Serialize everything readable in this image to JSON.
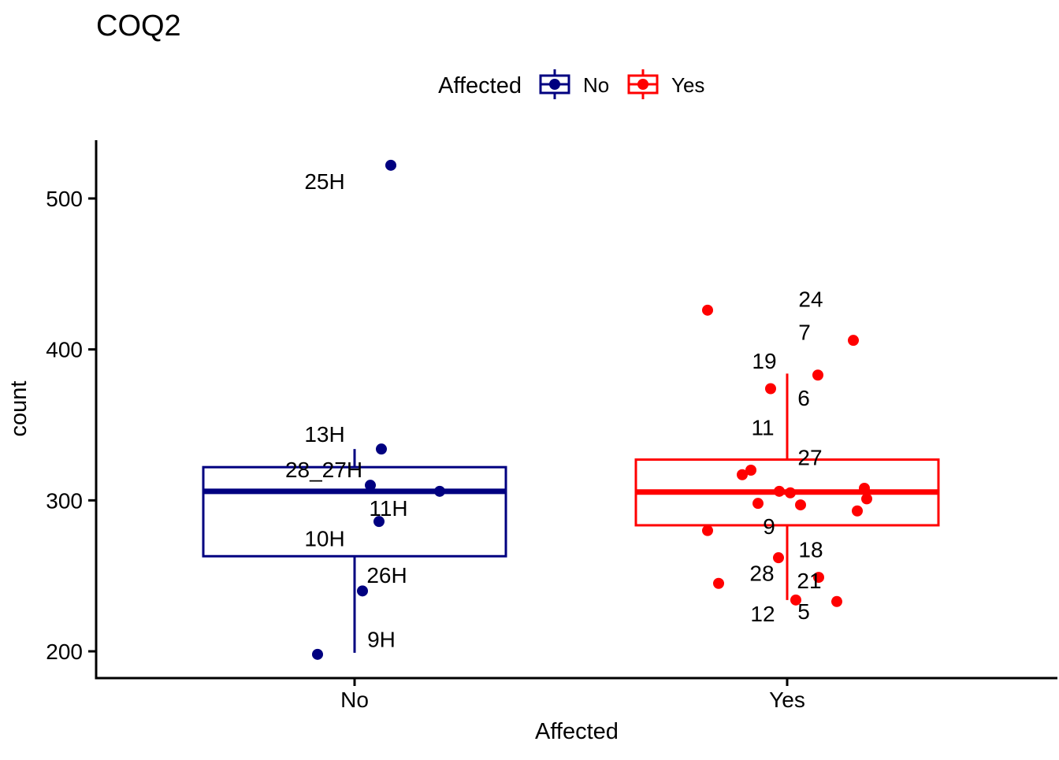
{
  "title": "COQ2",
  "legend": {
    "title": "Affected",
    "items": [
      {
        "label": "No",
        "color": "#000080"
      },
      {
        "label": "Yes",
        "color": "#FF0000"
      }
    ]
  },
  "colors": {
    "axis": "#000000",
    "text": "#000000",
    "background": "#ffffff"
  },
  "chart_data": {
    "type": "boxplot",
    "title": "COQ2",
    "xlabel": "Affected",
    "ylabel": "count",
    "x_categories": [
      "No",
      "Yes"
    ],
    "y_ticks": [
      200,
      300,
      400,
      500
    ],
    "ylim": [
      182,
      539
    ],
    "grid": false,
    "legend_position": "top",
    "groups": [
      {
        "name": "No",
        "color": "#000080",
        "box_stats": {
          "whisker_low": 199,
          "q1": 263,
          "median": 306,
          "q3": 322,
          "whisker_high": 334
        },
        "points": [
          {
            "value": 522,
            "dx": 46
          },
          {
            "value": 334,
            "dx": 34
          },
          {
            "value": 310,
            "dx": 20
          },
          {
            "value": 306,
            "dx": 108
          },
          {
            "value": 286,
            "dx": 31
          },
          {
            "value": 240,
            "dx": 10
          },
          {
            "value": 198,
            "dx": -47
          }
        ],
        "point_labels": [
          {
            "text": "25H",
            "value": 511.5,
            "dx": -38
          },
          {
            "text": "13H",
            "value": 344.0,
            "dx": -38
          },
          {
            "text": "28_27H",
            "value": 320.5,
            "dx": -39
          },
          {
            "text": "11H",
            "value": 295.0,
            "dx": 43
          },
          {
            "text": "10H",
            "value": 275.0,
            "dx": -38
          },
          {
            "text": "26H",
            "value": 250.5,
            "dx": 41
          },
          {
            "text": "9H",
            "value": 208.0,
            "dx": 34
          }
        ]
      },
      {
        "name": "Yes",
        "color": "#FF0000",
        "box_stats": {
          "whisker_low": 234,
          "q1": 283.5,
          "median": 305.5,
          "q3": 327,
          "whisker_high": 384
        },
        "points": [
          {
            "value": 426,
            "dx": -101
          },
          {
            "value": 406,
            "dx": 84
          },
          {
            "value": 383,
            "dx": 39
          },
          {
            "value": 374,
            "dx": -21
          },
          {
            "value": 320,
            "dx": -46
          },
          {
            "value": 317,
            "dx": -57
          },
          {
            "value": 308,
            "dx": 98
          },
          {
            "value": 306,
            "dx": -10
          },
          {
            "value": 305,
            "dx": 4
          },
          {
            "value": 301,
            "dx": 101
          },
          {
            "value": 298,
            "dx": -37
          },
          {
            "value": 297,
            "dx": 17
          },
          {
            "value": 293,
            "dx": 89
          },
          {
            "value": 280,
            "dx": -101
          },
          {
            "value": 262,
            "dx": -11
          },
          {
            "value": 249,
            "dx": 40
          },
          {
            "value": 245,
            "dx": -87
          },
          {
            "value": 234,
            "dx": 11
          },
          {
            "value": 233,
            "dx": 63
          }
        ],
        "point_labels": [
          {
            "text": "24",
            "value": 433.5,
            "dx": 30
          },
          {
            "text": "7",
            "value": 411.5,
            "dx": 22
          },
          {
            "text": "19",
            "value": 392.5,
            "dx": -29
          },
          {
            "text": "6",
            "value": 368.0,
            "dx": 21
          },
          {
            "text": "11",
            "value": 348.5,
            "dx": -31
          },
          {
            "text": "27",
            "value": 328.5,
            "dx": 29
          },
          {
            "text": "9",
            "value": 283.0,
            "dx": -23
          },
          {
            "text": "18",
            "value": 267.5,
            "dx": 30
          },
          {
            "text": "28",
            "value": 252.0,
            "dx": -32
          },
          {
            "text": "21",
            "value": 247.0,
            "dx": 28
          },
          {
            "text": "12",
            "value": 225.0,
            "dx": -31
          },
          {
            "text": "5",
            "value": 226.5,
            "dx": 21
          }
        ]
      }
    ]
  }
}
